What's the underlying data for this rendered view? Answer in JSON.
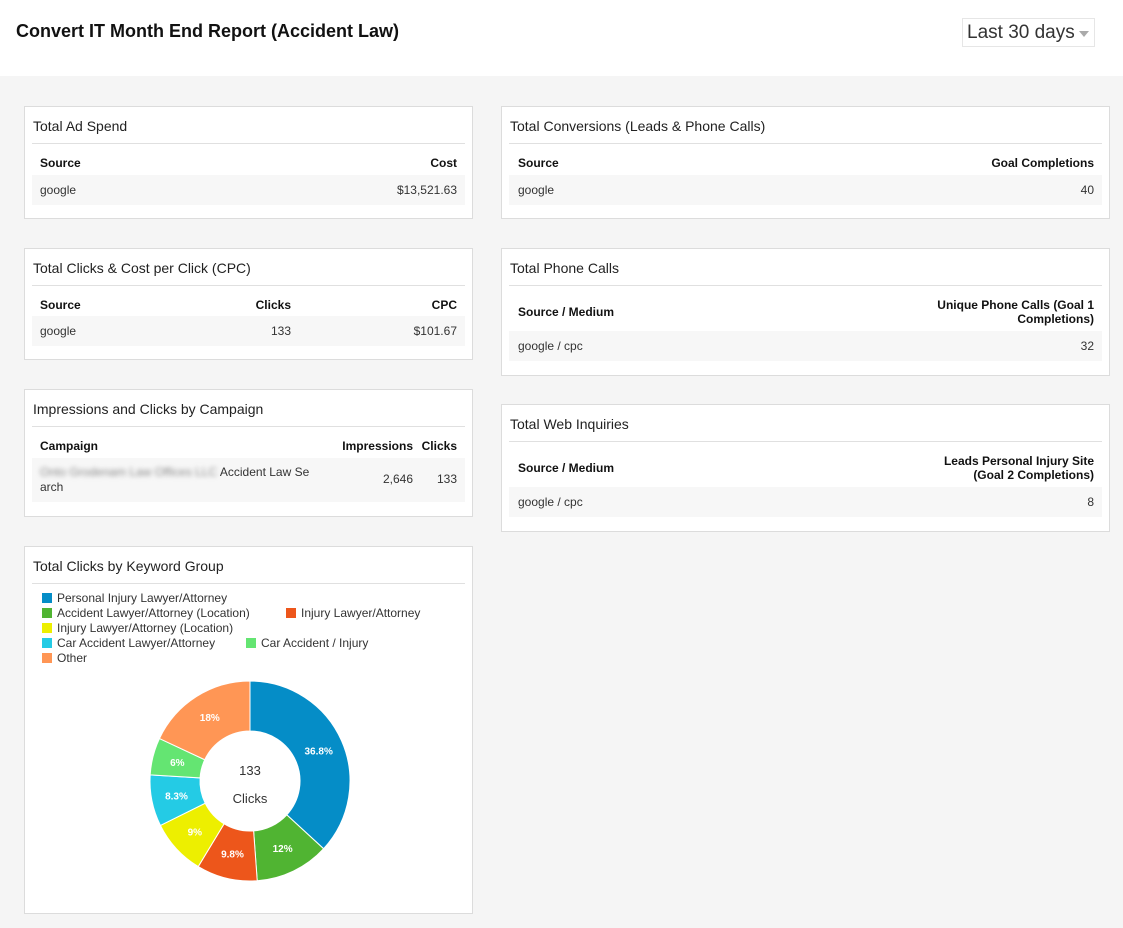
{
  "header": {
    "title": "Convert IT Month End Report (Accident Law)",
    "date_range": "Last 30 days"
  },
  "ad_spend": {
    "title": "Total Ad Spend",
    "headers": [
      "Source",
      "Cost"
    ],
    "rows": [
      [
        "google",
        "$13,521.63"
      ]
    ]
  },
  "clicks_cpc": {
    "title": "Total Clicks & Cost per Click (CPC)",
    "headers": [
      "Source",
      "Clicks",
      "CPC"
    ],
    "rows": [
      [
        "google",
        "133",
        "$101.67"
      ]
    ]
  },
  "campaigns": {
    "title": "Impressions and Clicks by Campaign",
    "headers": [
      "Campaign",
      "Impressions",
      "Clicks"
    ],
    "rows": [
      {
        "campaign_blurred": "Onto Grodenam Law Offices LLC",
        "campaign_visible": "Accident Law Se",
        "campaign_wrap": "arch",
        "impressions": "2,646",
        "clicks": "133"
      }
    ]
  },
  "conversions": {
    "title": "Total Conversions (Leads & Phone Calls)",
    "headers": [
      "Source",
      "Goal Completions"
    ],
    "rows": [
      [
        "google",
        "40"
      ]
    ]
  },
  "phone_calls": {
    "title": "Total Phone Calls",
    "headers": [
      "Source / Medium",
      "Unique Phone Calls (Goal 1",
      "Completions)"
    ],
    "rows": [
      [
        "google / cpc",
        "32"
      ]
    ]
  },
  "web_inquiries": {
    "title": "Total Web Inquiries",
    "headers": [
      "Source / Medium",
      "Leads Personal Injury Site",
      "(Goal 2 Completions)"
    ],
    "rows": [
      [
        "google / cpc",
        "8"
      ]
    ]
  },
  "keyword_group": {
    "title": "Total Clicks by Keyword Group",
    "center_value": "133",
    "center_label": "Clicks"
  },
  "chart_data": {
    "type": "pie",
    "title": "Total Clicks by Keyword Group",
    "total": 133,
    "legend_position": "top",
    "series": [
      {
        "name": "Personal Injury Lawyer/Attorney",
        "percent": 36.8,
        "label": "36.8%",
        "color": "#058dc7"
      },
      {
        "name": "Accident Lawyer/Attorney (Location)",
        "percent": 12.0,
        "label": "12%",
        "color": "#50b432"
      },
      {
        "name": "Injury Lawyer/Attorney",
        "percent": 9.8,
        "label": "9.8%",
        "color": "#ed561b"
      },
      {
        "name": "Injury Lawyer/Attorney (Location)",
        "percent": 9.0,
        "label": "9%",
        "color": "#edef00"
      },
      {
        "name": "Car Accident Lawyer/Attorney",
        "percent": 8.3,
        "label": "8.3%",
        "color": "#24cbe5"
      },
      {
        "name": "Car Accident / Injury",
        "percent": 6.0,
        "label": "6%",
        "color": "#64e572"
      },
      {
        "name": "Other",
        "percent": 18.0,
        "label": "18%",
        "color": "#ff9655"
      }
    ]
  }
}
